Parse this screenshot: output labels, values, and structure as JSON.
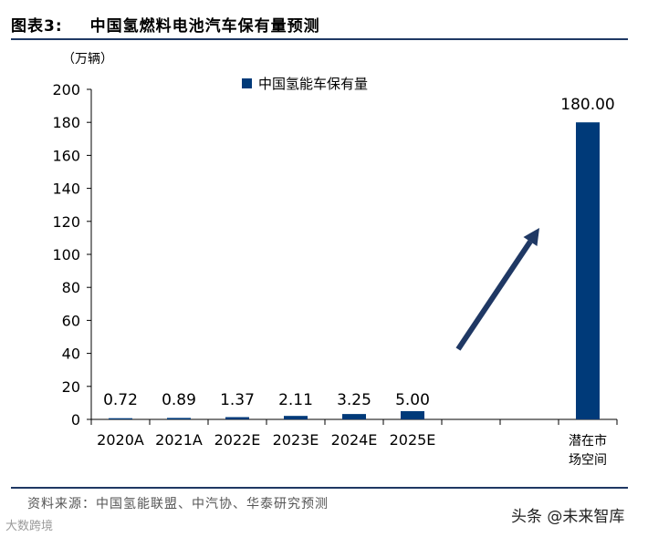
{
  "figure": {
    "label": "图表3:",
    "title": "中国氢燃料电池汽车保有量预测"
  },
  "unit_label": "（万辆）",
  "source": "资料来源：中国氢能联盟、中汽协、华泰研究预测",
  "watermark_left": "大数跨境",
  "watermark_right": "头条 @未来智库",
  "colors": {
    "bar": "#003a79",
    "arrow": "#1f3864",
    "rule": "#1f3864"
  },
  "chart_data": {
    "type": "bar",
    "categories": [
      "2020A",
      "2021A",
      "2022E",
      "2023E",
      "2024E",
      "2025E",
      "",
      "",
      "潜在市场空间"
    ],
    "category_lines": [
      [
        "2020A"
      ],
      [
        "2021A"
      ],
      [
        "2022E"
      ],
      [
        "2023E"
      ],
      [
        "2024E"
      ],
      [
        "2025E"
      ],
      [
        ""
      ],
      [
        ""
      ],
      [
        "潜在市",
        "场空间"
      ]
    ],
    "series": [
      {
        "name": "中国氢能车保有量",
        "values": [
          0.72,
          0.89,
          1.37,
          2.11,
          3.25,
          5.0,
          null,
          null,
          180.0
        ],
        "labels": [
          "0.72",
          "0.89",
          "1.37",
          "2.11",
          "3.25",
          "5.00",
          "",
          "",
          "180.00"
        ]
      }
    ],
    "ylim": [
      0,
      200
    ],
    "yticks": [
      "0",
      "20",
      "40",
      "60",
      "80",
      "100",
      "120",
      "140",
      "160",
      "180",
      "200"
    ],
    "legend_position": "top-center",
    "grid": false
  }
}
